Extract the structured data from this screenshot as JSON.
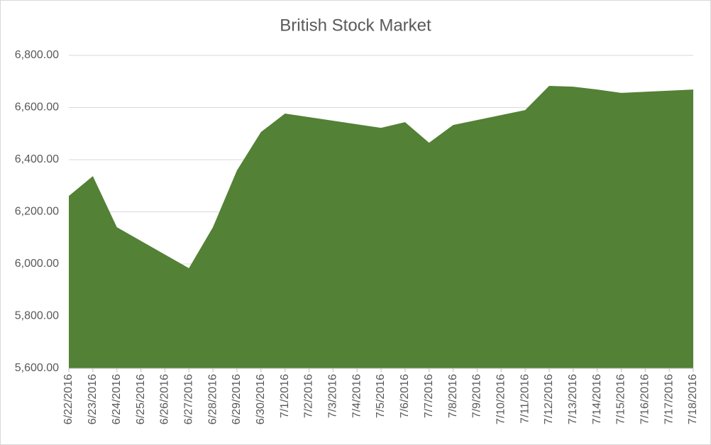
{
  "chart_data": {
    "type": "area",
    "title": "British Stock Market",
    "x": [
      "6/22/2016",
      "6/23/2016",
      "6/24/2016",
      "6/27/2016",
      "6/28/2016",
      "6/29/2016",
      "6/30/2016",
      "7/1/2016",
      "7/5/2016",
      "7/6/2016",
      "7/7/2016",
      "7/8/2016",
      "7/11/2016",
      "7/12/2016",
      "7/13/2016",
      "7/14/2016",
      "7/15/2016",
      "7/18/2016"
    ],
    "values": [
      6261,
      6337,
      6141,
      5984,
      6141,
      6359,
      6506,
      6577,
      6522,
      6544,
      6465,
      6533,
      6590,
      6683,
      6680,
      6669,
      6656,
      6669
    ],
    "color": "#538135",
    "xticks": [
      "6/22/2016",
      "6/23/2016",
      "6/24/2016",
      "6/25/2016",
      "6/26/2016",
      "6/27/2016",
      "6/28/2016",
      "6/29/2016",
      "6/30/2016",
      "7/1/2016",
      "7/2/2016",
      "7/3/2016",
      "7/4/2016",
      "7/5/2016",
      "7/6/2016",
      "7/7/2016",
      "7/8/2016",
      "7/9/2016",
      "7/10/2016",
      "7/11/2016",
      "7/12/2016",
      "7/13/2016",
      "7/14/2016",
      "7/15/2016",
      "7/16/2016",
      "7/17/2016",
      "7/18/2016"
    ],
    "ylim": [
      5600,
      6800
    ],
    "yticks": [
      {
        "value": 5600,
        "label": "5,600.00"
      },
      {
        "value": 5800,
        "label": "5,800.00"
      },
      {
        "value": 6000,
        "label": "6,000.00"
      },
      {
        "value": 6200,
        "label": "6,200.00"
      },
      {
        "value": 6400,
        "label": "6,400.00"
      },
      {
        "value": 6600,
        "label": "6,600.00"
      },
      {
        "value": 6800,
        "label": "6,800.00"
      }
    ],
    "grid": true
  }
}
